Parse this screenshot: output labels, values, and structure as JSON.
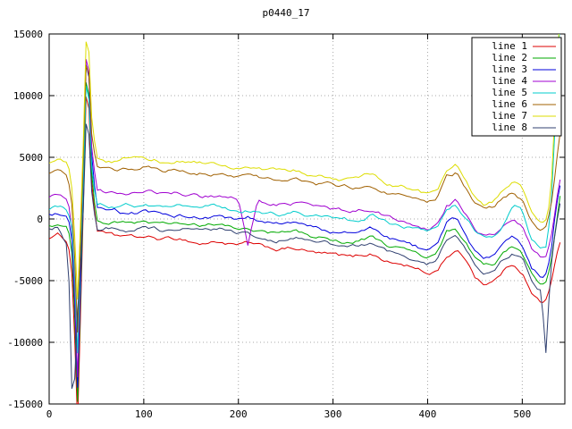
{
  "chart_data": {
    "type": "line",
    "title": "p0440_17",
    "xlabel": "",
    "ylabel": "",
    "xlim": [
      0,
      545
    ],
    "ylim": [
      -15000,
      15000
    ],
    "x_ticks": [
      0,
      100,
      200,
      300,
      400,
      500
    ],
    "y_ticks": [
      -15000,
      -10000,
      -5000,
      0,
      5000,
      10000,
      15000
    ],
    "grid": true,
    "grid_color": "#a8a8a8",
    "axis_color": "#000000",
    "background": "#ffffff",
    "legend_position": "top-right",
    "noise": {
      "step": 3,
      "damp": 0.85,
      "innovation": 130
    },
    "x": [
      0,
      10,
      20,
      25,
      30,
      35,
      40,
      45,
      50,
      60,
      70,
      80,
      90,
      100,
      120,
      140,
      160,
      180,
      200,
      210,
      220,
      240,
      260,
      280,
      300,
      320,
      340,
      360,
      380,
      400,
      410,
      420,
      430,
      440,
      450,
      460,
      470,
      480,
      490,
      500,
      510,
      520,
      525,
      530,
      535,
      540
    ],
    "series": [
      {
        "name": "line 1",
        "color": "#dd0000",
        "values": [
          -1500,
          -1300,
          -1800,
          -5000,
          -16500,
          -2500,
          13000,
          3000,
          -800,
          -1200,
          -1500,
          -1400,
          -1600,
          -1500,
          -1700,
          -1600,
          -2000,
          -1800,
          -2200,
          -2000,
          -2300,
          -2500,
          -2400,
          -2800,
          -3000,
          -3200,
          -2800,
          -3500,
          -3800,
          -4500,
          -4200,
          -3000,
          -2600,
          -3200,
          -4600,
          -5200,
          -5000,
          -4200,
          -3600,
          -4200,
          -6000,
          -6800,
          -6500,
          -5500,
          -3500,
          -2000
        ]
      },
      {
        "name": "line 2",
        "color": "#00aa00",
        "values": [
          -500,
          -400,
          -700,
          -3500,
          -15000,
          -1800,
          14500,
          4000,
          0,
          -300,
          -200,
          -400,
          -300,
          -200,
          -500,
          -400,
          -700,
          -500,
          -900,
          -700,
          -1000,
          -1200,
          -1100,
          -1500,
          -1700,
          -1900,
          -1500,
          -2300,
          -2600,
          -3300,
          -2900,
          -1200,
          -800,
          -1900,
          -3300,
          -3900,
          -3700,
          -2900,
          -2300,
          -2900,
          -4600,
          -5300,
          -5100,
          -3900,
          -1200,
          1500
        ]
      },
      {
        "name": "line 3",
        "color": "#0000dd",
        "values": [
          300,
          400,
          0,
          -2500,
          -14000,
          -1200,
          15500,
          4800,
          700,
          400,
          500,
          300,
          400,
          500,
          200,
          300,
          0,
          200,
          -200,
          0,
          -300,
          -500,
          -400,
          -800,
          -1000,
          -1200,
          -800,
          -1600,
          -1900,
          -2600,
          -2200,
          -500,
          -100,
          -1200,
          -2600,
          -3200,
          -3000,
          -2200,
          -1600,
          -2200,
          -3900,
          -4600,
          -4300,
          -2800,
          800,
          3000
        ]
      },
      {
        "name": "line 4",
        "color": "#a000d0",
        "values": [
          1800,
          2000,
          1500,
          -1500,
          -13000,
          200,
          16000,
          5800,
          2400,
          2200,
          2000,
          2100,
          2200,
          2300,
          2000,
          2100,
          1800,
          1900,
          1700,
          -2200,
          1400,
          1200,
          1300,
          900,
          700,
          500,
          900,
          100,
          -200,
          -900,
          -500,
          1100,
          1500,
          400,
          -900,
          -1500,
          -1300,
          -500,
          100,
          -500,
          -2200,
          -2900,
          -2700,
          -1400,
          1200,
          3500
        ]
      },
      {
        "name": "line 5",
        "color": "#00cccc",
        "values": [
          800,
          1000,
          600,
          -800,
          -11000,
          600,
          13500,
          4300,
          1200,
          1100,
          1000,
          1200,
          1100,
          1300,
          1000,
          1100,
          900,
          1000,
          700,
          800,
          600,
          400,
          500,
          100,
          0,
          -200,
          300,
          -300,
          -600,
          -1100,
          -700,
          900,
          1300,
          200,
          -900,
          -1500,
          -1300,
          -400,
          1400,
          700,
          -1600,
          -2300,
          -2100,
          400,
          8000,
          16500
        ]
      },
      {
        "name": "line 6",
        "color": "#a06000",
        "values": [
          3800,
          4000,
          3500,
          800,
          -9000,
          2200,
          15200,
          7000,
          4300,
          4100,
          4000,
          4200,
          4100,
          4300,
          4000,
          4100,
          3900,
          3800,
          3500,
          3600,
          3400,
          3200,
          3300,
          2900,
          2700,
          2500,
          2900,
          2200,
          1900,
          1200,
          1600,
          3200,
          3600,
          2500,
          1200,
          600,
          800,
          1600,
          2200,
          1600,
          -100,
          -800,
          -600,
          900,
          3800,
          7000
        ]
      },
      {
        "name": "line 7",
        "color": "#dddd00",
        "values": [
          4500,
          4700,
          4200,
          1800,
          -6500,
          3200,
          17000,
          8200,
          5000,
          4800,
          4700,
          4900,
          5200,
          5000,
          4700,
          4800,
          4600,
          4500,
          4200,
          4300,
          4100,
          3900,
          4000,
          3600,
          3400,
          3200,
          3700,
          2900,
          2600,
          1900,
          2300,
          3900,
          4300,
          3200,
          1900,
          1300,
          1500,
          2300,
          2900,
          2300,
          600,
          -200,
          100,
          1700,
          9500,
          17000
        ]
      },
      {
        "name": "line 8",
        "color": "#304070",
        "values": [
          -900,
          -700,
          -2200,
          -16500,
          -7500,
          -1800,
          10000,
          2200,
          -1000,
          -800,
          -700,
          -900,
          -800,
          -700,
          -1000,
          -900,
          -1100,
          -1000,
          -1300,
          -1100,
          -1400,
          -1600,
          -1500,
          -1900,
          -2100,
          -2300,
          -2000,
          -2700,
          -3000,
          -3700,
          -3300,
          -1700,
          -1300,
          -2400,
          -3700,
          -4300,
          -4100,
          -3300,
          -2700,
          -3300,
          -5100,
          -5800,
          -11000,
          -4200,
          -800,
          1200
        ]
      }
    ]
  }
}
